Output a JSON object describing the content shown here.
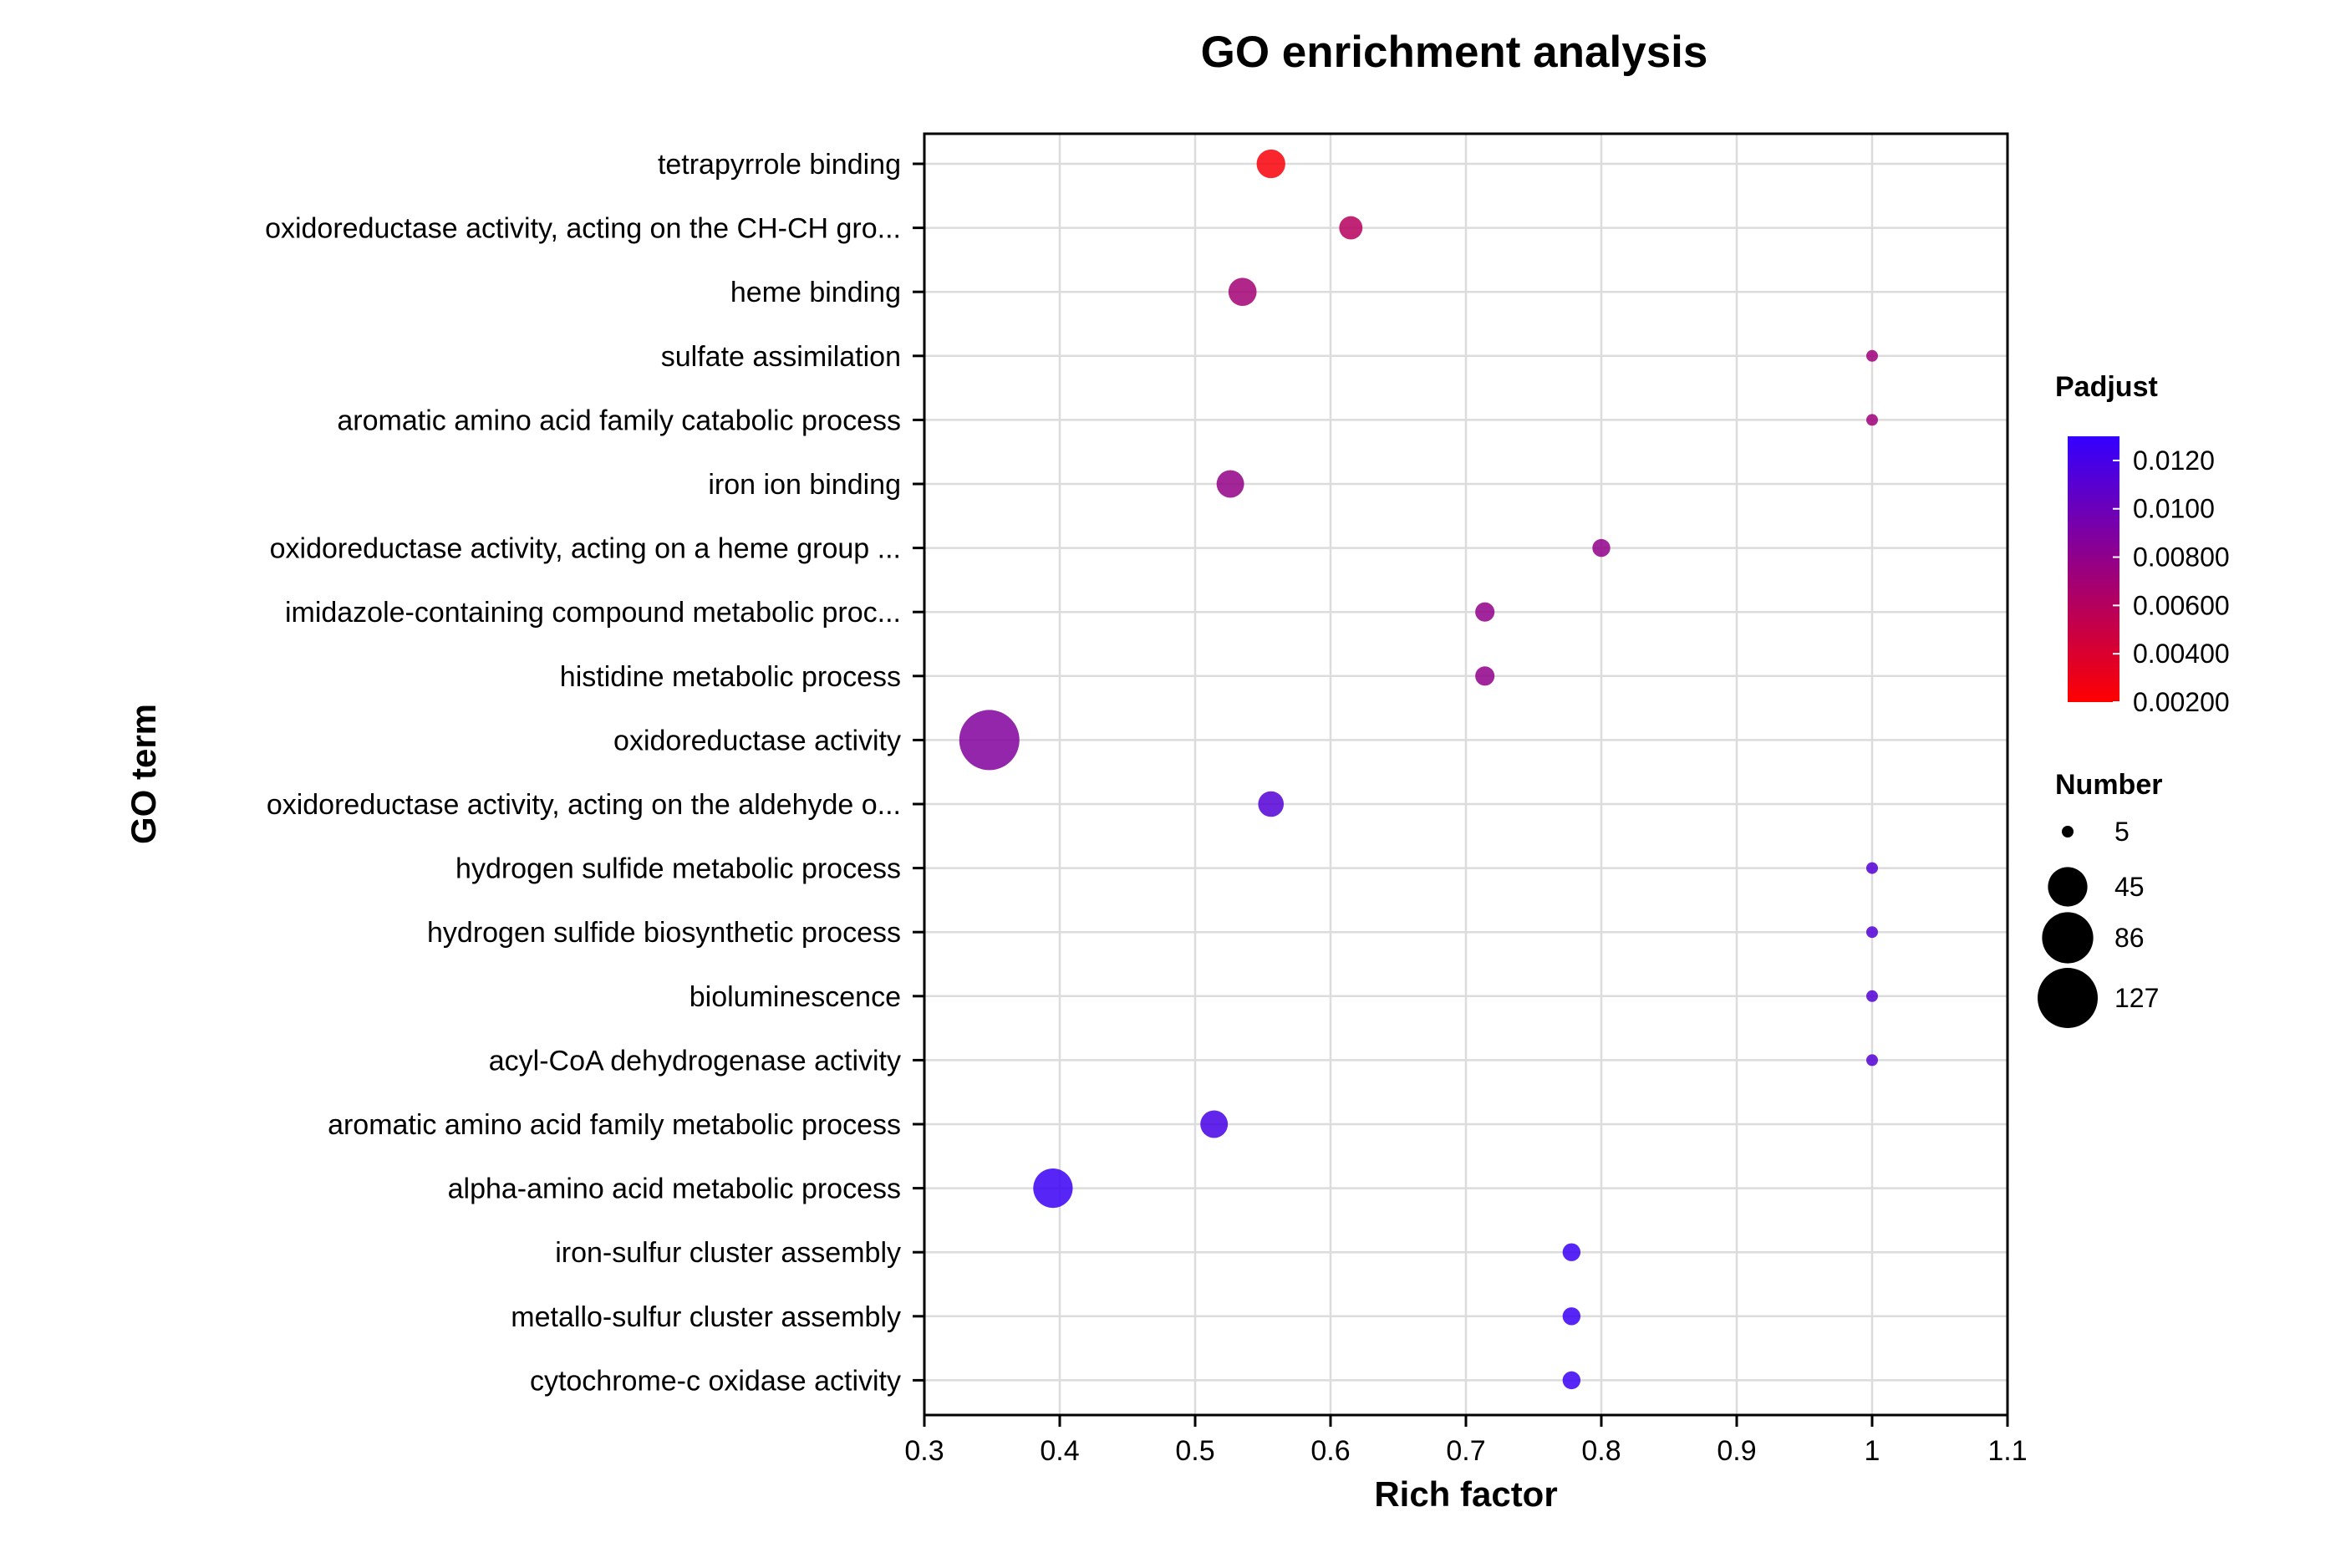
{
  "chart_data": {
    "type": "scatter",
    "title": "GO enrichment analysis",
    "xlabel": "Rich factor",
    "ylabel": "GO term",
    "xlim": [
      0.3,
      1.1
    ],
    "xticks": [
      0.3,
      0.4,
      0.5,
      0.6,
      0.7,
      0.8,
      0.9,
      1,
      1.1
    ],
    "xtick_labels": [
      "0.3",
      "0.4",
      "0.5",
      "0.6",
      "0.7",
      "0.8",
      "0.9",
      "1",
      "1.1"
    ],
    "grid": true,
    "points": [
      {
        "term": "tetrapyrrole binding",
        "rich_factor": 0.556,
        "number": 20,
        "padjust": 0.0024
      },
      {
        "term": "oxidoreductase activity, acting on the CH-CH gro...",
        "rich_factor": 0.615,
        "number": 12,
        "padjust": 0.006
      },
      {
        "term": "heme binding",
        "rich_factor": 0.535,
        "number": 19,
        "padjust": 0.007
      },
      {
        "term": "sulfate assimilation",
        "rich_factor": 1.0,
        "number": 5,
        "padjust": 0.0072
      },
      {
        "term": "aromatic amino acid family catabolic process",
        "rich_factor": 1.0,
        "number": 5,
        "padjust": 0.0072
      },
      {
        "term": "iron ion binding",
        "rich_factor": 0.526,
        "number": 18,
        "padjust": 0.0078
      },
      {
        "term": "oxidoreductase activity, acting on a heme group ...",
        "rich_factor": 0.8,
        "number": 7,
        "padjust": 0.008
      },
      {
        "term": "imidazole-containing compound metabolic proc...",
        "rich_factor": 0.714,
        "number": 8,
        "padjust": 0.008
      },
      {
        "term": "histidine metabolic process",
        "rich_factor": 0.714,
        "number": 8,
        "padjust": 0.008
      },
      {
        "term": "oxidoreductase activity",
        "rich_factor": 0.348,
        "number": 127,
        "padjust": 0.0088
      },
      {
        "term": "oxidoreductase activity, acting on the aldehyde o...",
        "rich_factor": 0.556,
        "number": 15,
        "padjust": 0.0112
      },
      {
        "term": "hydrogen sulfide metabolic process",
        "rich_factor": 1.0,
        "number": 5,
        "padjust": 0.0112
      },
      {
        "term": "hydrogen sulfide biosynthetic process",
        "rich_factor": 1.0,
        "number": 5,
        "padjust": 0.0112
      },
      {
        "term": "bioluminescence",
        "rich_factor": 1.0,
        "number": 5,
        "padjust": 0.0112
      },
      {
        "term": "acyl-CoA dehydrogenase activity",
        "rich_factor": 1.0,
        "number": 5,
        "padjust": 0.0112
      },
      {
        "term": "aromatic amino acid family metabolic process",
        "rich_factor": 0.514,
        "number": 18,
        "padjust": 0.012
      },
      {
        "term": "alpha-amino acid metabolic process",
        "rich_factor": 0.395,
        "number": 45,
        "padjust": 0.0126
      },
      {
        "term": "iron-sulfur cluster assembly",
        "rich_factor": 0.778,
        "number": 7,
        "padjust": 0.0126
      },
      {
        "term": "metallo-sulfur cluster assembly",
        "rich_factor": 0.778,
        "number": 7,
        "padjust": 0.0126
      },
      {
        "term": "cytochrome-c oxidase activity",
        "rich_factor": 0.778,
        "number": 7,
        "padjust": 0.0126
      }
    ],
    "color_legend": {
      "title": "Padjust",
      "range": [
        0.002,
        0.013
      ],
      "low_color": "#ff0000",
      "high_color": "#3300ff",
      "ticks": [
        0.012,
        0.01,
        0.008,
        0.006,
        0.004,
        0.002
      ],
      "tick_labels": [
        "0.0120",
        "0.0100",
        "0.00800",
        "0.00600",
        "0.00400",
        "0.00200"
      ]
    },
    "size_legend": {
      "title": "Number",
      "values": [
        5,
        45,
        86,
        127
      ],
      "labels": [
        "5",
        "45",
        "86",
        "127"
      ]
    }
  }
}
